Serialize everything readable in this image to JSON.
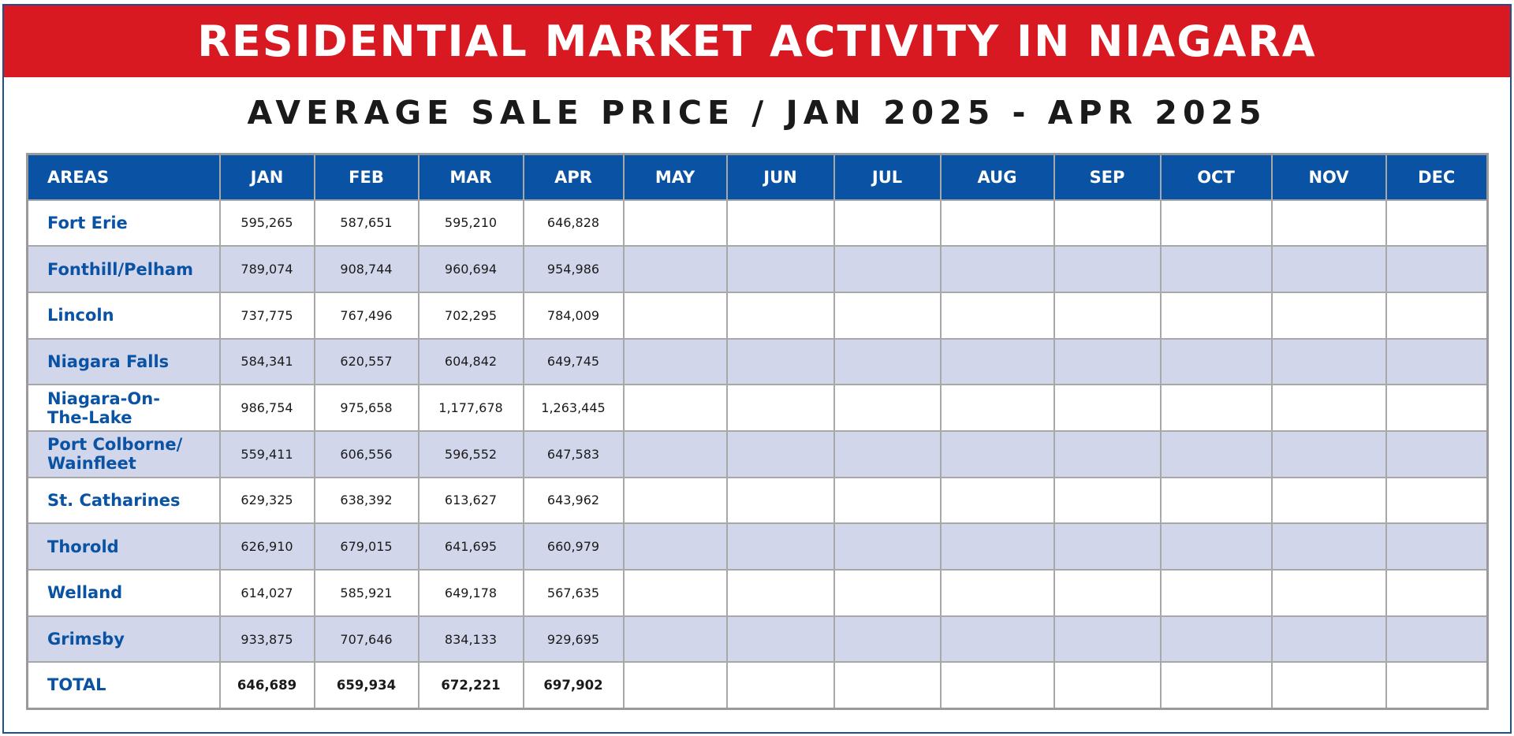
{
  "banner": {
    "title": "RESIDENTIAL MARKET ACTIVITY IN NIAGARA"
  },
  "subtitle": {
    "text": "AVERAGE SALE PRICE / JAN 2025 - APR 2025"
  },
  "colors": {
    "banner_red": "#d81921",
    "header_blue": "#0a52a3",
    "alt_row": "#d1d6eb"
  },
  "chart_data": {
    "type": "table",
    "title": "AVERAGE SALE PRICE / JAN 2025 - APR 2025",
    "columns": [
      "AREAS",
      "JAN",
      "FEB",
      "MAR",
      "APR",
      "MAY",
      "JUN",
      "JUL",
      "AUG",
      "SEP",
      "OCT",
      "NOV",
      "DEC"
    ],
    "rows": [
      {
        "area": "Fort Erie",
        "values": [
          "595,265",
          "587,651",
          "595,210",
          "646,828",
          "",
          "",
          "",
          "",
          "",
          "",
          "",
          ""
        ]
      },
      {
        "area": "Fonthill/Pelham",
        "values": [
          "789,074",
          "908,744",
          "960,694",
          "954,986",
          "",
          "",
          "",
          "",
          "",
          "",
          "",
          ""
        ]
      },
      {
        "area": "Lincoln",
        "values": [
          "737,775",
          "767,496",
          "702,295",
          "784,009",
          "",
          "",
          "",
          "",
          "",
          "",
          "",
          ""
        ]
      },
      {
        "area": "Niagara Falls",
        "values": [
          "584,341",
          "620,557",
          "604,842",
          "649,745",
          "",
          "",
          "",
          "",
          "",
          "",
          "",
          ""
        ]
      },
      {
        "area": "Niagara-On-\nThe-Lake",
        "values": [
          "986,754",
          "975,658",
          "1,177,678",
          "1,263,445",
          "",
          "",
          "",
          "",
          "",
          "",
          "",
          ""
        ]
      },
      {
        "area": "Port Colborne/\nWainfleet",
        "values": [
          "559,411",
          "606,556",
          "596,552",
          "647,583",
          "",
          "",
          "",
          "",
          "",
          "",
          "",
          ""
        ]
      },
      {
        "area": "St. Catharines",
        "values": [
          "629,325",
          "638,392",
          "613,627",
          "643,962",
          "",
          "",
          "",
          "",
          "",
          "",
          "",
          ""
        ]
      },
      {
        "area": "Thorold",
        "values": [
          "626,910",
          "679,015",
          "641,695",
          "660,979",
          "",
          "",
          "",
          "",
          "",
          "",
          "",
          ""
        ]
      },
      {
        "area": "Welland",
        "values": [
          "614,027",
          "585,921",
          "649,178",
          "567,635",
          "",
          "",
          "",
          "",
          "",
          "",
          "",
          ""
        ]
      },
      {
        "area": "Grimsby",
        "values": [
          "933,875",
          "707,646",
          "834,133",
          "929,695",
          "",
          "",
          "",
          "",
          "",
          "",
          "",
          ""
        ]
      },
      {
        "area": "TOTAL",
        "values": [
          "646,689",
          "659,934",
          "672,221",
          "697,902",
          "",
          "",
          "",
          "",
          "",
          "",
          "",
          ""
        ]
      }
    ]
  }
}
